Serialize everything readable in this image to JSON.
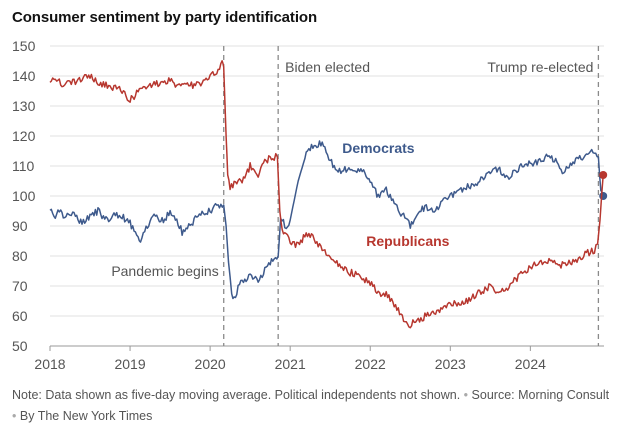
{
  "title": "Consumer sentiment by party identification",
  "footer": {
    "note": "Note: Data shown as five-day moving average. Political independents not shown.",
    "source": "Source: Morning Consult",
    "byline": "By The New York Times",
    "separator": "•"
  },
  "chart_data": {
    "type": "line",
    "title": "Consumer sentiment by party identification",
    "xlabel": "",
    "ylabel": "",
    "xlim": [
      2018.0,
      2024.92
    ],
    "ylim": [
      50,
      150
    ],
    "yticks": [
      50,
      60,
      70,
      80,
      90,
      100,
      110,
      120,
      130,
      140,
      150
    ],
    "xticks": [
      {
        "value": 2018,
        "label": "2018"
      },
      {
        "value": 2019,
        "label": "2019"
      },
      {
        "value": 2020,
        "label": "2020"
      },
      {
        "value": 2021,
        "label": "2021"
      },
      {
        "value": 2022,
        "label": "2022"
      },
      {
        "value": 2023,
        "label": "2023"
      },
      {
        "value": 2024,
        "label": "2024"
      }
    ],
    "grid": "horizontal",
    "legend": "inline labels",
    "annotations": [
      {
        "label": "Pandemic begins",
        "x": 2020.17,
        "text_side": "left",
        "text_y": 75
      },
      {
        "label": "Biden elected",
        "x": 2020.85,
        "text_side": "right",
        "text_y": 143
      },
      {
        "label": "Trump re-elected",
        "x": 2024.85,
        "text_side": "left",
        "text_y": 143
      }
    ],
    "series": [
      {
        "name": "Democrats",
        "color": "#3e5a8c",
        "label_at": [
          2021.65,
          116
        ],
        "points": [
          [
            2018.0,
            96
          ],
          [
            2018.05,
            93
          ],
          [
            2018.1,
            95
          ],
          [
            2018.2,
            93
          ],
          [
            2018.3,
            94
          ],
          [
            2018.4,
            91
          ],
          [
            2018.5,
            93
          ],
          [
            2018.6,
            95
          ],
          [
            2018.7,
            92
          ],
          [
            2018.8,
            94
          ],
          [
            2018.9,
            93
          ],
          [
            2019.0,
            91
          ],
          [
            2019.05,
            88
          ],
          [
            2019.1,
            86
          ],
          [
            2019.13,
            85
          ],
          [
            2019.2,
            89
          ],
          [
            2019.3,
            93
          ],
          [
            2019.4,
            92
          ],
          [
            2019.5,
            94
          ],
          [
            2019.6,
            91
          ],
          [
            2019.65,
            88
          ],
          [
            2019.7,
            89
          ],
          [
            2019.8,
            92
          ],
          [
            2019.9,
            94
          ],
          [
            2020.0,
            95
          ],
          [
            2020.1,
            97
          ],
          [
            2020.17,
            97
          ],
          [
            2020.2,
            90
          ],
          [
            2020.23,
            78
          ],
          [
            2020.27,
            68
          ],
          [
            2020.3,
            66
          ],
          [
            2020.4,
            72
          ],
          [
            2020.5,
            73
          ],
          [
            2020.6,
            72
          ],
          [
            2020.7,
            76
          ],
          [
            2020.8,
            79
          ],
          [
            2020.85,
            80
          ],
          [
            2020.88,
            92
          ],
          [
            2020.95,
            90
          ],
          [
            2021.0,
            92
          ],
          [
            2021.1,
            105
          ],
          [
            2021.2,
            114
          ],
          [
            2021.3,
            117
          ],
          [
            2021.4,
            118
          ],
          [
            2021.5,
            112
          ],
          [
            2021.6,
            108
          ],
          [
            2021.7,
            109
          ],
          [
            2021.8,
            108
          ],
          [
            2021.9,
            109
          ],
          [
            2022.0,
            104
          ],
          [
            2022.1,
            100
          ],
          [
            2022.2,
            102
          ],
          [
            2022.3,
            97
          ],
          [
            2022.4,
            94
          ],
          [
            2022.45,
            92
          ],
          [
            2022.5,
            90
          ],
          [
            2022.55,
            92
          ],
          [
            2022.6,
            95
          ],
          [
            2022.7,
            96
          ],
          [
            2022.8,
            95
          ],
          [
            2022.9,
            98
          ],
          [
            2023.0,
            100
          ],
          [
            2023.1,
            101
          ],
          [
            2023.2,
            103
          ],
          [
            2023.3,
            104
          ],
          [
            2023.4,
            106
          ],
          [
            2023.5,
            108
          ],
          [
            2023.6,
            109
          ],
          [
            2023.7,
            106
          ],
          [
            2023.8,
            108
          ],
          [
            2023.9,
            110
          ],
          [
            2024.0,
            111
          ],
          [
            2024.1,
            111
          ],
          [
            2024.2,
            113
          ],
          [
            2024.3,
            112
          ],
          [
            2024.4,
            108
          ],
          [
            2024.5,
            111
          ],
          [
            2024.6,
            112
          ],
          [
            2024.7,
            114
          ],
          [
            2024.8,
            115
          ],
          [
            2024.85,
            113
          ],
          [
            2024.88,
            101
          ],
          [
            2024.91,
            100
          ]
        ],
        "end_value": 100
      },
      {
        "name": "Republicans",
        "color": "#b7372f",
        "label_at": [
          2021.95,
          85
        ],
        "points": [
          [
            2018.0,
            139
          ],
          [
            2018.05,
            140
          ],
          [
            2018.1,
            138
          ],
          [
            2018.2,
            137
          ],
          [
            2018.3,
            138
          ],
          [
            2018.4,
            139
          ],
          [
            2018.5,
            140
          ],
          [
            2018.6,
            138
          ],
          [
            2018.7,
            137
          ],
          [
            2018.8,
            136
          ],
          [
            2018.9,
            135
          ],
          [
            2019.0,
            132
          ],
          [
            2019.05,
            133
          ],
          [
            2019.1,
            135
          ],
          [
            2019.2,
            136
          ],
          [
            2019.3,
            137
          ],
          [
            2019.4,
            138
          ],
          [
            2019.5,
            139
          ],
          [
            2019.6,
            136
          ],
          [
            2019.7,
            137
          ],
          [
            2019.8,
            137
          ],
          [
            2019.9,
            138
          ],
          [
            2020.0,
            140
          ],
          [
            2020.1,
            141
          ],
          [
            2020.15,
            144
          ],
          [
            2020.17,
            143
          ],
          [
            2020.2,
            120
          ],
          [
            2020.22,
            108
          ],
          [
            2020.25,
            103
          ],
          [
            2020.3,
            104
          ],
          [
            2020.4,
            105
          ],
          [
            2020.5,
            110
          ],
          [
            2020.6,
            107
          ],
          [
            2020.7,
            112
          ],
          [
            2020.8,
            113
          ],
          [
            2020.84,
            113
          ],
          [
            2020.87,
            95
          ],
          [
            2020.9,
            88
          ],
          [
            2021.0,
            85
          ],
          [
            2021.05,
            84
          ],
          [
            2021.1,
            84
          ],
          [
            2021.2,
            87
          ],
          [
            2021.3,
            86
          ],
          [
            2021.4,
            82
          ],
          [
            2021.5,
            79
          ],
          [
            2021.6,
            77
          ],
          [
            2021.7,
            75
          ],
          [
            2021.8,
            74
          ],
          [
            2021.9,
            73
          ],
          [
            2022.0,
            71
          ],
          [
            2022.1,
            68
          ],
          [
            2022.2,
            67
          ],
          [
            2022.3,
            64
          ],
          [
            2022.4,
            60
          ],
          [
            2022.45,
            58
          ],
          [
            2022.5,
            57
          ],
          [
            2022.55,
            59
          ],
          [
            2022.6,
            59
          ],
          [
            2022.7,
            60
          ],
          [
            2022.8,
            61
          ],
          [
            2022.9,
            62
          ],
          [
            2023.0,
            64
          ],
          [
            2023.1,
            64
          ],
          [
            2023.2,
            65
          ],
          [
            2023.3,
            67
          ],
          [
            2023.4,
            68
          ],
          [
            2023.5,
            70
          ],
          [
            2023.6,
            68
          ],
          [
            2023.7,
            69
          ],
          [
            2023.8,
            72
          ],
          [
            2023.9,
            74
          ],
          [
            2024.0,
            76
          ],
          [
            2024.1,
            78
          ],
          [
            2024.2,
            78
          ],
          [
            2024.3,
            78
          ],
          [
            2024.4,
            77
          ],
          [
            2024.5,
            78
          ],
          [
            2024.6,
            79
          ],
          [
            2024.7,
            81
          ],
          [
            2024.8,
            82
          ],
          [
            2024.84,
            84
          ],
          [
            2024.87,
            92
          ],
          [
            2024.89,
            100
          ],
          [
            2024.91,
            107
          ]
        ],
        "end_value": 107
      }
    ]
  }
}
